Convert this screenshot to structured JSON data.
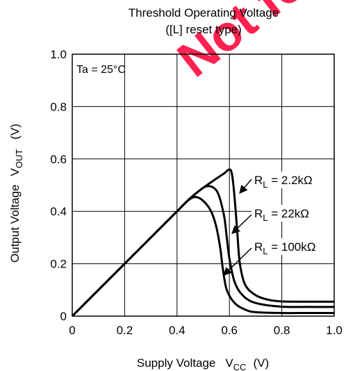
{
  "chart_data": {
    "type": "line",
    "title": "Threshold Operating Voltage",
    "subtitle": "([L] reset type)",
    "xlabel": {
      "main": "Supply Voltage",
      "symbol": "V",
      "sub": "CC",
      "unit": "(V)"
    },
    "ylabel": {
      "main": "Output Voltage",
      "symbol": "V",
      "sub": "OUT",
      "unit": "(V)"
    },
    "xlim": [
      0,
      1.0
    ],
    "ylim": [
      0,
      1.0
    ],
    "x_ticks": [
      "0",
      "0.2",
      "0.4",
      "0.6",
      "0.8",
      "1.0"
    ],
    "y_ticks": [
      "0",
      "0.2",
      "0.4",
      "0.6",
      "0.8",
      "1.0"
    ],
    "grid": true,
    "annotation": "Ta = 25°C",
    "series": [
      {
        "name": "R_L = 2.2kΩ",
        "label": {
          "symbol": "R",
          "sub": "L",
          "value": " = 2.2kΩ"
        },
        "points": [
          [
            0,
            0
          ],
          [
            0.1,
            0.1
          ],
          [
            0.2,
            0.2
          ],
          [
            0.3,
            0.3
          ],
          [
            0.4,
            0.4
          ],
          [
            0.45,
            0.45
          ],
          [
            0.5,
            0.49
          ],
          [
            0.55,
            0.525
          ],
          [
            0.58,
            0.545
          ],
          [
            0.6,
            0.56
          ],
          [
            0.61,
            0.54
          ],
          [
            0.62,
            0.45
          ],
          [
            0.63,
            0.32
          ],
          [
            0.64,
            0.2
          ],
          [
            0.66,
            0.12
          ],
          [
            0.7,
            0.08
          ],
          [
            0.75,
            0.062
          ],
          [
            0.8,
            0.056
          ],
          [
            0.9,
            0.055
          ],
          [
            1.0,
            0.055
          ]
        ]
      },
      {
        "name": "R_L = 22kΩ",
        "label": {
          "symbol": "R",
          "sub": "L",
          "value": " = 22kΩ"
        },
        "points": [
          [
            0,
            0
          ],
          [
            0.1,
            0.1
          ],
          [
            0.2,
            0.2
          ],
          [
            0.3,
            0.3
          ],
          [
            0.4,
            0.4
          ],
          [
            0.44,
            0.44
          ],
          [
            0.48,
            0.475
          ],
          [
            0.51,
            0.495
          ],
          [
            0.54,
            0.49
          ],
          [
            0.56,
            0.46
          ],
          [
            0.58,
            0.38
          ],
          [
            0.59,
            0.3
          ],
          [
            0.6,
            0.22
          ],
          [
            0.62,
            0.13
          ],
          [
            0.65,
            0.08
          ],
          [
            0.7,
            0.05
          ],
          [
            0.8,
            0.036
          ],
          [
            0.9,
            0.035
          ],
          [
            1.0,
            0.035
          ]
        ]
      },
      {
        "name": "R_L = 100kΩ",
        "label": {
          "symbol": "R",
          "sub": "L",
          "value": " = 100kΩ"
        },
        "points": [
          [
            0,
            0
          ],
          [
            0.1,
            0.1
          ],
          [
            0.2,
            0.2
          ],
          [
            0.3,
            0.3
          ],
          [
            0.4,
            0.4
          ],
          [
            0.44,
            0.44
          ],
          [
            0.47,
            0.455
          ],
          [
            0.5,
            0.44
          ],
          [
            0.53,
            0.4
          ],
          [
            0.55,
            0.34
          ],
          [
            0.565,
            0.26
          ],
          [
            0.575,
            0.18
          ],
          [
            0.59,
            0.1
          ],
          [
            0.62,
            0.05
          ],
          [
            0.66,
            0.025
          ],
          [
            0.7,
            0.015
          ],
          [
            0.8,
            0.012
          ],
          [
            0.9,
            0.012
          ],
          [
            1.0,
            0.012
          ]
        ]
      }
    ]
  },
  "watermark": "Not for"
}
